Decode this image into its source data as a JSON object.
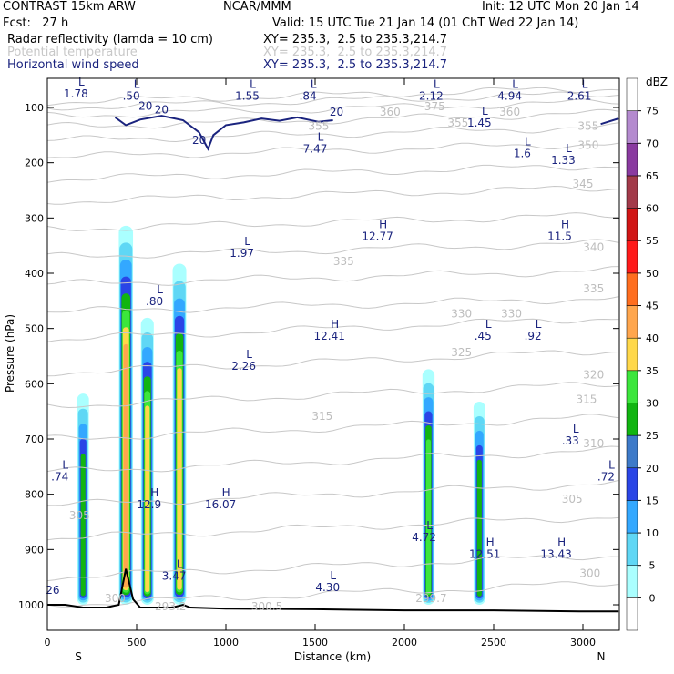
{
  "header": {
    "title": "CONTRAST 15km ARW",
    "center": "NCAR/MMM",
    "init": "Init: 12 UTC Mon 20 Jan 14",
    "fcst": "Fcst:   27 h",
    "valid": "Valid: 15 UTC Tue 21 Jan 14 (01 ChT Wed 22 Jan 14)",
    "fields": [
      {
        "name": "Radar reflectivity (lamda = 10 cm)",
        "xy": "XY= 235.3,  2.5 to 235.3,214.7",
        "color": "#000000"
      },
      {
        "name": "Potential temperature",
        "xy": "XY= 235.3,  2.5 to 235.3,214.7",
        "color": "#c8c8c8"
      },
      {
        "name": "Horizontal wind speed",
        "xy": "XY= 235.3,  2.5 to 235.3,214.7",
        "color": "#1a237e"
      }
    ]
  },
  "chart_data": {
    "type": "heatmap",
    "xlabel": "Distance (km)",
    "ylabel": "Pressure (hPa)",
    "xlim": [
      0,
      3200
    ],
    "ylim": [
      1050,
      50
    ],
    "x_ticks": [
      0,
      500,
      1000,
      1500,
      2000,
      2500,
      3000
    ],
    "y_ticks": [
      100,
      200,
      300,
      400,
      500,
      600,
      700,
      800,
      900,
      1000
    ],
    "x_end_labels": {
      "left": "S",
      "right": "N"
    },
    "colorbar": {
      "unit": "dBZ",
      "levels": [
        0,
        5,
        10,
        15,
        20,
        25,
        30,
        35,
        40,
        45,
        50,
        55,
        60,
        65,
        70,
        75
      ],
      "colors": [
        "#ffffff",
        "#aaffff",
        "#5fd7f5",
        "#33a8ff",
        "#2a45e6",
        "#3d7ac9",
        "#11b511",
        "#3ce63c",
        "#ffd84a",
        "#ffa64d",
        "#ff6e1f",
        "#ff1a1a",
        "#d11515",
        "#a33a4a",
        "#8a3aa0",
        "#b48acf",
        "#ffffff"
      ]
    },
    "reflectivity_cells": [
      {
        "x_center": 200,
        "top_hPa": 610,
        "bottom_hPa": 1000
      },
      {
        "x_center": 440,
        "top_hPa": 300,
        "bottom_hPa": 1000
      },
      {
        "x_center": 560,
        "top_hPa": 470,
        "bottom_hPa": 1000
      },
      {
        "x_center": 740,
        "top_hPa": 370,
        "bottom_hPa": 1000
      },
      {
        "x_center": 2135,
        "top_hPa": 565,
        "bottom_hPa": 1000
      },
      {
        "x_center": 2420,
        "top_hPa": 625,
        "bottom_hPa": 1000
      }
    ],
    "surface_profile_hPa": [
      [
        0,
        1000
      ],
      [
        100,
        1000
      ],
      [
        200,
        1005
      ],
      [
        330,
        1005
      ],
      [
        400,
        1000
      ],
      [
        440,
        935
      ],
      [
        480,
        990
      ],
      [
        520,
        1005
      ],
      [
        700,
        1005
      ],
      [
        760,
        1000
      ],
      [
        800,
        1005
      ],
      [
        1000,
        1007
      ],
      [
        1500,
        1008
      ],
      [
        2000,
        1010
      ],
      [
        2500,
        1010
      ],
      [
        3000,
        1012
      ],
      [
        3200,
        1012
      ]
    ],
    "wind_contour_label": "20",
    "theta_labels": [
      {
        "text": "375",
        "x": 2170,
        "p": 105
      },
      {
        "text": "360",
        "x": 1920,
        "p": 115
      },
      {
        "text": "360",
        "x": 2590,
        "p": 115
      },
      {
        "text": "355",
        "x": 1520,
        "p": 140
      },
      {
        "text": "355",
        "x": 2300,
        "p": 135
      },
      {
        "text": "355",
        "x": 3030,
        "p": 140
      },
      {
        "text": "350",
        "x": 3030,
        "p": 175
      },
      {
        "text": "345",
        "x": 3000,
        "p": 245
      },
      {
        "text": "340",
        "x": 3060,
        "p": 360
      },
      {
        "text": "335",
        "x": 1660,
        "p": 385
      },
      {
        "text": "335",
        "x": 3060,
        "p": 435
      },
      {
        "text": "330",
        "x": 2320,
        "p": 480
      },
      {
        "text": "330",
        "x": 2600,
        "p": 480
      },
      {
        "text": "325",
        "x": 2320,
        "p": 550
      },
      {
        "text": "320",
        "x": 3060,
        "p": 590
      },
      {
        "text": "315",
        "x": 1540,
        "p": 665
      },
      {
        "text": "315",
        "x": 3020,
        "p": 635
      },
      {
        "text": "310",
        "x": 3060,
        "p": 715
      },
      {
        "text": "305",
        "x": 180,
        "p": 845
      },
      {
        "text": "305",
        "x": 2940,
        "p": 815
      },
      {
        "text": "300",
        "x": 380,
        "p": 995
      },
      {
        "text": "300",
        "x": 3040,
        "p": 950
      }
    ],
    "extrema": [
      {
        "type": "L",
        "value": "1.78",
        "x": 160,
        "p": 82
      },
      {
        "type": "L",
        "value": ".50",
        "x": 470,
        "p": 86
      },
      {
        "type": "L",
        "value": "1.55",
        "x": 1120,
        "p": 86
      },
      {
        "type": "L",
        "value": ".84",
        "x": 1460,
        "p": 86
      },
      {
        "type": "L",
        "value": "2.12",
        "x": 2150,
        "p": 86
      },
      {
        "type": "L",
        "value": "4.94",
        "x": 2590,
        "p": 86
      },
      {
        "type": "L",
        "value": "2.61",
        "x": 2980,
        "p": 86
      },
      {
        "type": "L",
        "value": "1.45",
        "x": 2420,
        "p": 135
      },
      {
        "type": "L",
        "value": "7.47",
        "x": 1500,
        "p": 182
      },
      {
        "type": "L",
        "value": "1.6",
        "x": 2660,
        "p": 190
      },
      {
        "type": "L",
        "value": "1.33",
        "x": 2890,
        "p": 202
      },
      {
        "type": "H",
        "value": "12.77",
        "x": 1850,
        "p": 340
      },
      {
        "type": "H",
        "value": "11.5",
        "x": 2870,
        "p": 340
      },
      {
        "type": "L",
        "value": "1.97",
        "x": 1090,
        "p": 370
      },
      {
        "type": "L",
        "value": ".80",
        "x": 600,
        "p": 458
      },
      {
        "type": "H",
        "value": "12.41",
        "x": 1580,
        "p": 520
      },
      {
        "type": "L",
        "value": ".45",
        "x": 2440,
        "p": 520
      },
      {
        "type": "L",
        "value": ".92",
        "x": 2720,
        "p": 520
      },
      {
        "type": "L",
        "value": "2.26",
        "x": 1100,
        "p": 575
      },
      {
        "type": "L",
        "value": ".33",
        "x": 2930,
        "p": 710
      },
      {
        "type": "L",
        "value": ".74",
        "x": 70,
        "p": 775
      },
      {
        "type": "L",
        "value": ".72",
        "x": 3130,
        "p": 775
      },
      {
        "type": "H",
        "value": "12.9",
        "x": 570,
        "p": 825
      },
      {
        "type": "H",
        "value": "16.07",
        "x": 970,
        "p": 825
      },
      {
        "type": "L",
        "value": "4.72",
        "x": 2110,
        "p": 885
      },
      {
        "type": "H",
        "value": "12.51",
        "x": 2450,
        "p": 915
      },
      {
        "type": "H",
        "value": "13.43",
        "x": 2850,
        "p": 915
      },
      {
        "type": "L",
        "value": "3.47",
        "x": 710,
        "p": 955
      },
      {
        "type": "L",
        "value": "4.30",
        "x": 1570,
        "p": 975
      },
      {
        "type": "",
        "value": "26",
        "x": 30,
        "p": 980
      }
    ],
    "surface_labels": [
      {
        "text": "293.2",
        "x": 690,
        "p": 1010
      },
      {
        "text": "300.5",
        "x": 1230,
        "p": 1010
      },
      {
        "text": "299.7",
        "x": 2150,
        "p": 995
      }
    ]
  }
}
